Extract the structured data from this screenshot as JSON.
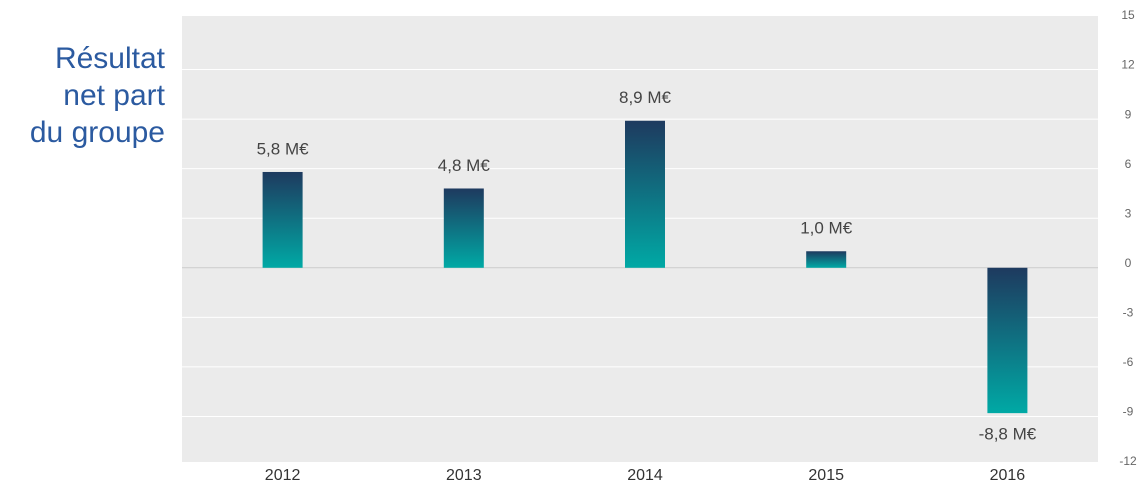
{
  "chart_data": {
    "type": "bar",
    "title": "Résultat net part du groupe",
    "categories": [
      "2012",
      "2013",
      "2014",
      "2015",
      "2016"
    ],
    "values": [
      5.8,
      4.8,
      8.9,
      1.0,
      -8.8
    ],
    "value_labels": [
      "5,8 M€",
      "4,8 M€",
      "8,9 M€",
      "1,0 M€",
      "-8,8 M€"
    ],
    "color": [
      "#1e3a5f",
      "#00a9a5"
    ],
    "ylim": [
      -12,
      15
    ],
    "yticks": [
      -12,
      -9,
      -6,
      -3,
      0,
      3,
      6,
      9,
      12,
      15
    ],
    "grid": true,
    "y_axis_side": "right"
  }
}
